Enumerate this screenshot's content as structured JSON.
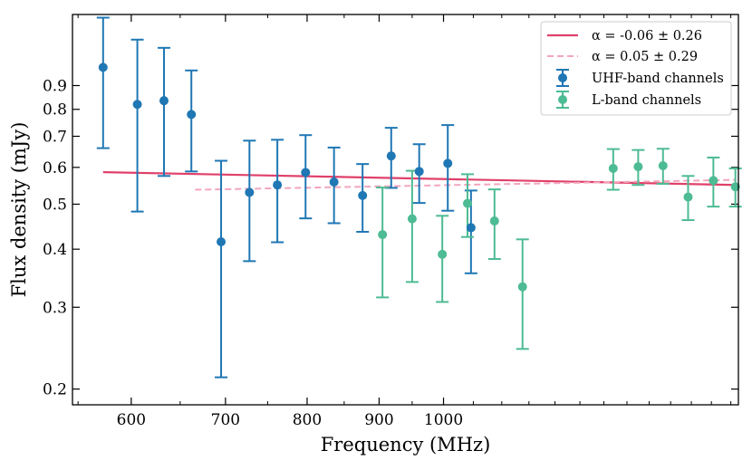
{
  "chart_data": {
    "type": "scatter",
    "xlabel": "Frequency (MHz)",
    "ylabel": "Flux density (mJy)",
    "xscale": "log",
    "yscale": "log",
    "xlim": [
      545,
      1620
    ],
    "ylim": [
      0.185,
      1.28
    ],
    "x_ticks": [
      600,
      700,
      800,
      900,
      1000
    ],
    "x_tick_labels": [
      "600",
      "700",
      "800",
      "900",
      "1000"
    ],
    "y_ticks": [
      0.2,
      0.3,
      0.4,
      0.5,
      0.6,
      0.7,
      0.8,
      0.9
    ],
    "y_tick_labels": [
      "0.2",
      "0.3",
      "0.4",
      "0.5",
      "0.6",
      "0.7",
      "0.8",
      "0.9"
    ],
    "legend_position": "top-right",
    "series": [
      {
        "name": "UHF-band channels",
        "color": "#1f77b4",
        "points": [
          {
            "x": 573,
            "y": 0.985,
            "lo": 0.66,
            "hi": 1.26
          },
          {
            "x": 606,
            "y": 0.82,
            "lo": 0.482,
            "hi": 1.13
          },
          {
            "x": 633,
            "y": 0.835,
            "lo": 0.575,
            "hi": 1.085
          },
          {
            "x": 662,
            "y": 0.78,
            "lo": 0.588,
            "hi": 0.97
          },
          {
            "x": 695,
            "y": 0.415,
            "lo": 0.212,
            "hi": 0.62
          },
          {
            "x": 728,
            "y": 0.53,
            "lo": 0.377,
            "hi": 0.685
          },
          {
            "x": 762,
            "y": 0.55,
            "lo": 0.414,
            "hi": 0.688
          },
          {
            "x": 798,
            "y": 0.585,
            "lo": 0.466,
            "hi": 0.704
          },
          {
            "x": 836,
            "y": 0.558,
            "lo": 0.455,
            "hi": 0.662
          },
          {
            "x": 876,
            "y": 0.522,
            "lo": 0.436,
            "hi": 0.61
          },
          {
            "x": 918,
            "y": 0.635,
            "lo": 0.542,
            "hi": 0.73
          },
          {
            "x": 961,
            "y": 0.588,
            "lo": 0.503,
            "hi": 0.673
          },
          {
            "x": 1007,
            "y": 0.612,
            "lo": 0.484,
            "hi": 0.74
          },
          {
            "x": 1046,
            "y": 0.445,
            "lo": 0.355,
            "hi": 0.535
          }
        ]
      },
      {
        "name": "L-band channels",
        "color": "#4dbb93",
        "points": [
          {
            "x": 905,
            "y": 0.43,
            "lo": 0.315,
            "hi": 0.543
          },
          {
            "x": 950,
            "y": 0.465,
            "lo": 0.34,
            "hi": 0.59
          },
          {
            "x": 998,
            "y": 0.39,
            "lo": 0.308,
            "hi": 0.472
          },
          {
            "x": 1040,
            "y": 0.502,
            "lo": 0.425,
            "hi": 0.58
          },
          {
            "x": 1087,
            "y": 0.46,
            "lo": 0.381,
            "hi": 0.538
          },
          {
            "x": 1138,
            "y": 0.332,
            "lo": 0.244,
            "hi": 0.42
          },
          {
            "x": 1320,
            "y": 0.597,
            "lo": 0.537,
            "hi": 0.657
          },
          {
            "x": 1375,
            "y": 0.602,
            "lo": 0.55,
            "hi": 0.654
          },
          {
            "x": 1432,
            "y": 0.605,
            "lo": 0.553,
            "hi": 0.658
          },
          {
            "x": 1492,
            "y": 0.518,
            "lo": 0.462,
            "hi": 0.575
          },
          {
            "x": 1555,
            "y": 0.562,
            "lo": 0.494,
            "hi": 0.63
          },
          {
            "x": 1612,
            "y": 0.545,
            "lo": 0.494,
            "hi": 0.597
          }
        ]
      }
    ],
    "fits": [
      {
        "label": "α = -0.06 ± 0.26",
        "color": "#e0406a",
        "style": "solid",
        "x": [
          573,
          1612
        ],
        "y": [
          0.586,
          0.55
        ]
      },
      {
        "label": "α = 0.05 ± 0.29",
        "color": "#f2a6bd",
        "style": "dashed",
        "x": [
          666,
          1612
        ],
        "y": [
          0.537,
          0.564
        ]
      }
    ]
  }
}
